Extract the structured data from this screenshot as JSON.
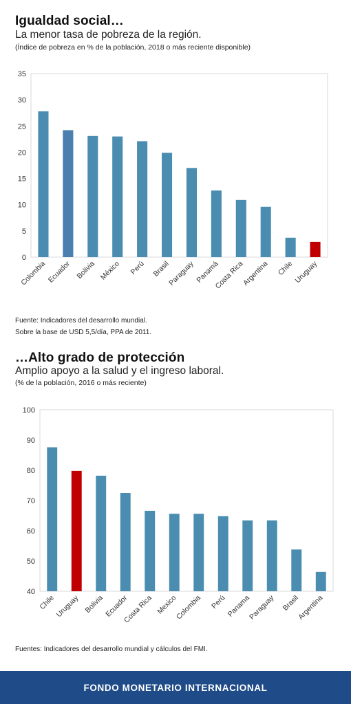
{
  "section1": {
    "title": "Igualdad social…",
    "subtitle": "La menor tasa de pobreza de la región.",
    "note": "(Índice de pobreza en % de la población, 2018 o más reciente disponible)",
    "source_line1": "Fuente: Indicadores del desarrollo mundial.",
    "source_line2": "Sobre la base de USD 5,5/día, PPA de 2011."
  },
  "section2": {
    "title": "…Alto grado de protección",
    "subtitle": "Amplio apoyo a la salud y el ingreso laboral.",
    "note": "(% de la población, 2016 o más reciente)",
    "source": "Fuentes: Indicadores del desarrollo mundial y cálculos del FMI."
  },
  "footer": {
    "label": "FONDO MONETARIO INTERNACIONAL"
  },
  "chart_data": [
    {
      "type": "bar",
      "categories": [
        "Colombia",
        "Ecuador",
        "Bolivia",
        "México",
        "Perú",
        "Brasil",
        "Paraguay",
        "Panamá",
        "Costa Rica",
        "Argentina",
        "Chile",
        "Uruguay"
      ],
      "values": [
        27.8,
        24.2,
        23.1,
        23.0,
        22.1,
        19.9,
        17.0,
        12.7,
        10.9,
        9.6,
        3.7,
        2.9
      ],
      "colors": [
        "#4a8db0",
        "#4a7fb0",
        "#4a8db0",
        "#4a8db0",
        "#4a8db0",
        "#4a8db0",
        "#4a8db0",
        "#4a8db0",
        "#4a8db0",
        "#4a8db0",
        "#4a8db0",
        "#c00000"
      ],
      "ylim": [
        0,
        35
      ],
      "yticks": [
        0,
        5,
        10,
        15,
        20,
        25,
        30,
        35
      ],
      "grid": false
    },
    {
      "type": "bar",
      "categories": [
        "Chile",
        "Uruguay",
        "Bolivia",
        "Ecuador",
        "Costa Rica",
        "Mexico",
        "Colombia",
        "Perú",
        "Panama",
        "Paraguay",
        "Brasil",
        "Argentina"
      ],
      "values": [
        87.6,
        79.8,
        78.2,
        72.5,
        66.6,
        65.6,
        65.6,
        64.8,
        63.4,
        63.4,
        53.8,
        46.4
      ],
      "colors": [
        "#4a8db0",
        "#c00000",
        "#4a8db0",
        "#4a8db0",
        "#4a8db0",
        "#4a8db0",
        "#4a8db0",
        "#4a8db0",
        "#4a8db0",
        "#4a8db0",
        "#4a8db0",
        "#4a8db0"
      ],
      "ylim": [
        40,
        100
      ],
      "yticks": [
        40,
        50,
        60,
        70,
        80,
        90,
        100
      ],
      "grid": false
    }
  ]
}
